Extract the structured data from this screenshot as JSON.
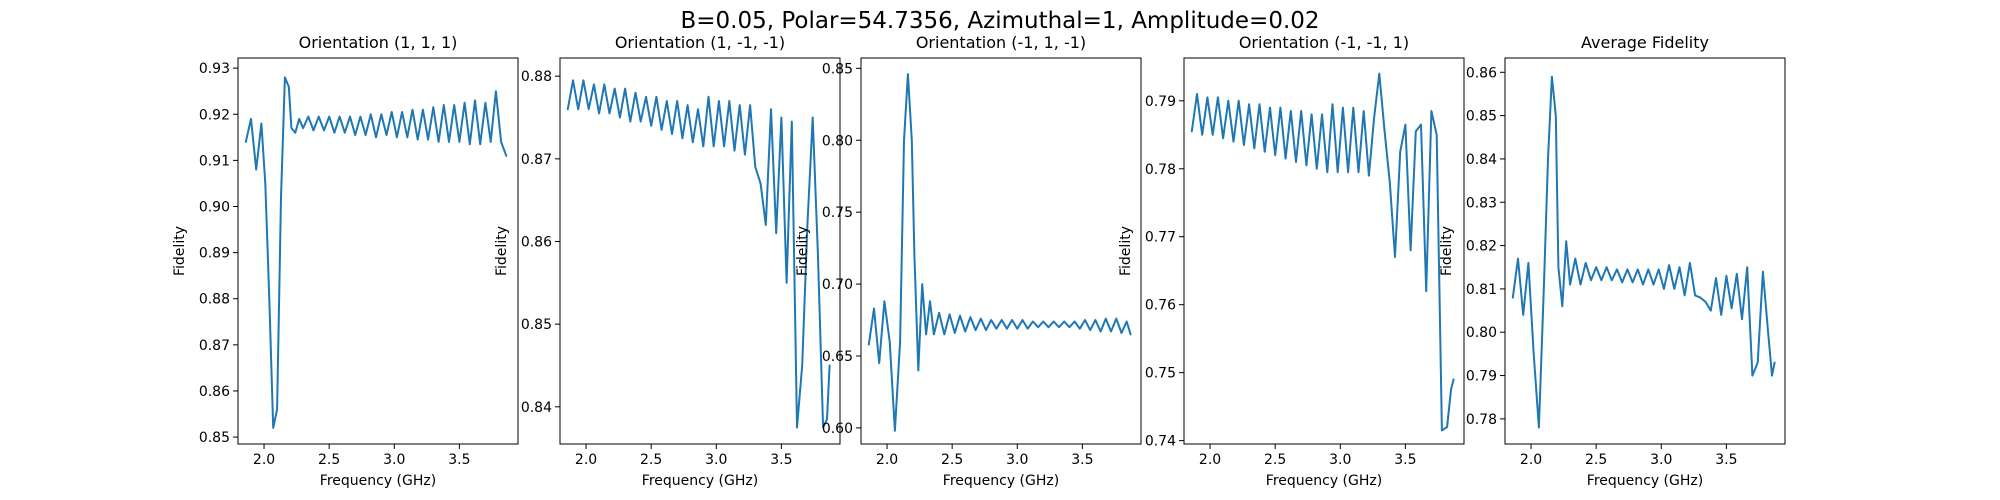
{
  "figure": {
    "suptitle": "B=0.05, Polar=54.7356, Azimuthal=1, Amplitude=0.02",
    "line_color": "#1f77b4"
  },
  "chart_data": [
    {
      "type": "line",
      "title": "Orientation (1, 1, 1)",
      "xlabel": "Frequency (GHz)",
      "ylabel": "Fidelity",
      "xlim": [
        1.8,
        3.95
      ],
      "ylim": [
        0.8485,
        0.9322
      ],
      "xticks": [
        2.0,
        2.5,
        3.0,
        3.5
      ],
      "xtick_labels": [
        "2.0",
        "2.5",
        "3.0",
        "3.5"
      ],
      "yticks": [
        0.85,
        0.86,
        0.87,
        0.88,
        0.89,
        0.9,
        0.91,
        0.92,
        0.93
      ],
      "ytick_labels": [
        "0.85",
        "0.86",
        "0.87",
        "0.88",
        "0.89",
        "0.90",
        "0.91",
        "0.92",
        "0.93"
      ],
      "series": [
        {
          "x": [
            1.86,
            1.9,
            1.94,
            1.98,
            2.01,
            2.04,
            2.07,
            2.1,
            2.13,
            2.16,
            2.19,
            2.21,
            2.24,
            2.27,
            2.3,
            2.34,
            2.38,
            2.42,
            2.46,
            2.5,
            2.54,
            2.58,
            2.62,
            2.66,
            2.7,
            2.74,
            2.78,
            2.82,
            2.86,
            2.9,
            2.94,
            2.98,
            3.02,
            3.06,
            3.1,
            3.14,
            3.18,
            3.22,
            3.26,
            3.3,
            3.34,
            3.38,
            3.42,
            3.46,
            3.5,
            3.54,
            3.58,
            3.62,
            3.66,
            3.7,
            3.74,
            3.78,
            3.82,
            3.86
          ],
          "y": [
            0.914,
            0.919,
            0.908,
            0.918,
            0.905,
            0.88,
            0.852,
            0.856,
            0.902,
            0.928,
            0.926,
            0.917,
            0.916,
            0.919,
            0.917,
            0.9195,
            0.9165,
            0.9195,
            0.9165,
            0.9195,
            0.916,
            0.9195,
            0.916,
            0.9195,
            0.9155,
            0.9195,
            0.9155,
            0.92,
            0.915,
            0.92,
            0.9155,
            0.9205,
            0.915,
            0.9205,
            0.915,
            0.921,
            0.9145,
            0.921,
            0.9145,
            0.9215,
            0.914,
            0.922,
            0.914,
            0.922,
            0.914,
            0.9225,
            0.9135,
            0.923,
            0.9135,
            0.9225,
            0.914,
            0.925,
            0.914,
            0.911
          ]
        }
      ]
    },
    {
      "type": "line",
      "title": "Orientation (1, -1, -1)",
      "xlabel": "Frequency (GHz)",
      "ylabel": "Fidelity",
      "xlim": [
        1.8,
        3.95
      ],
      "ylim": [
        0.8355,
        0.8822
      ],
      "xticks": [
        2.0,
        2.5,
        3.0,
        3.5
      ],
      "xtick_labels": [
        "2.0",
        "2.5",
        "3.0",
        "3.5"
      ],
      "yticks": [
        0.84,
        0.85,
        0.86,
        0.87,
        0.88
      ],
      "ytick_labels": [
        "0.84",
        "0.85",
        "0.86",
        "0.87",
        "0.88"
      ],
      "series": [
        {
          "x": [
            1.86,
            1.9,
            1.94,
            1.98,
            2.02,
            2.06,
            2.1,
            2.14,
            2.18,
            2.22,
            2.26,
            2.3,
            2.34,
            2.38,
            2.42,
            2.46,
            2.5,
            2.54,
            2.58,
            2.62,
            2.66,
            2.7,
            2.74,
            2.78,
            2.82,
            2.86,
            2.9,
            2.94,
            2.98,
            3.02,
            3.06,
            3.1,
            3.14,
            3.18,
            3.22,
            3.26,
            3.3,
            3.34,
            3.38,
            3.42,
            3.46,
            3.5,
            3.54,
            3.58,
            3.62,
            3.66,
            3.7,
            3.74,
            3.78,
            3.82,
            3.85,
            3.87
          ],
          "y": [
            0.876,
            0.8795,
            0.876,
            0.8795,
            0.876,
            0.879,
            0.8755,
            0.879,
            0.8755,
            0.8785,
            0.875,
            0.8785,
            0.8745,
            0.878,
            0.8745,
            0.8775,
            0.874,
            0.8775,
            0.8735,
            0.877,
            0.873,
            0.877,
            0.8725,
            0.8765,
            0.872,
            0.876,
            0.8715,
            0.8775,
            0.8715,
            0.877,
            0.8715,
            0.877,
            0.871,
            0.8765,
            0.8705,
            0.8765,
            0.869,
            0.867,
            0.862,
            0.876,
            0.861,
            0.875,
            0.855,
            0.8745,
            0.8375,
            0.845,
            0.862,
            0.875,
            0.8585,
            0.8375,
            0.8385,
            0.845
          ]
        }
      ]
    },
    {
      "type": "line",
      "title": "Orientation (-1, 1, -1)",
      "xlabel": "Frequency (GHz)",
      "ylabel": "Fidelity",
      "xlim": [
        1.8,
        3.95
      ],
      "ylim": [
        0.5888,
        0.8572
      ],
      "xticks": [
        2.0,
        2.5,
        3.0,
        3.5
      ],
      "xtick_labels": [
        "2.0",
        "2.5",
        "3.0",
        "3.5"
      ],
      "yticks": [
        0.6,
        0.65,
        0.7,
        0.75,
        0.8,
        0.85
      ],
      "ytick_labels": [
        "0.60",
        "0.65",
        "0.70",
        "0.75",
        "0.80",
        "0.85"
      ],
      "series": [
        {
          "x": [
            1.86,
            1.9,
            1.94,
            1.98,
            2.02,
            2.06,
            2.1,
            2.13,
            2.16,
            2.19,
            2.21,
            2.24,
            2.27,
            2.3,
            2.33,
            2.36,
            2.4,
            2.44,
            2.48,
            2.52,
            2.56,
            2.6,
            2.64,
            2.68,
            2.72,
            2.76,
            2.8,
            2.84,
            2.88,
            2.92,
            2.96,
            3.0,
            3.04,
            3.08,
            3.12,
            3.16,
            3.2,
            3.24,
            3.28,
            3.32,
            3.36,
            3.4,
            3.44,
            3.48,
            3.52,
            3.56,
            3.6,
            3.64,
            3.68,
            3.72,
            3.76,
            3.8,
            3.84,
            3.87
          ],
          "y": [
            0.658,
            0.683,
            0.645,
            0.688,
            0.66,
            0.598,
            0.66,
            0.8,
            0.846,
            0.8,
            0.72,
            0.64,
            0.7,
            0.665,
            0.688,
            0.665,
            0.68,
            0.665,
            0.679,
            0.666,
            0.678,
            0.667,
            0.677,
            0.668,
            0.676,
            0.668,
            0.675,
            0.669,
            0.675,
            0.669,
            0.675,
            0.669,
            0.675,
            0.669,
            0.674,
            0.67,
            0.674,
            0.67,
            0.674,
            0.67,
            0.674,
            0.67,
            0.674,
            0.669,
            0.675,
            0.668,
            0.675,
            0.667,
            0.676,
            0.667,
            0.676,
            0.666,
            0.674,
            0.665
          ]
        }
      ]
    },
    {
      "type": "line",
      "title": "Orientation (-1, -1, 1)",
      "xlabel": "Frequency (GHz)",
      "ylabel": "Fidelity",
      "xlim": [
        1.8,
        3.95
      ],
      "ylim": [
        0.7395,
        0.7963
      ],
      "xticks": [
        2.0,
        2.5,
        3.0,
        3.5
      ],
      "xtick_labels": [
        "2.0",
        "2.5",
        "3.0",
        "3.5"
      ],
      "yticks": [
        0.74,
        0.75,
        0.76,
        0.77,
        0.78,
        0.79
      ],
      "ytick_labels": [
        "0.74",
        "0.75",
        "0.76",
        "0.77",
        "0.78",
        "0.79"
      ],
      "series": [
        {
          "x": [
            1.86,
            1.9,
            1.94,
            1.98,
            2.02,
            2.06,
            2.1,
            2.14,
            2.18,
            2.22,
            2.26,
            2.3,
            2.34,
            2.38,
            2.42,
            2.46,
            2.5,
            2.54,
            2.58,
            2.62,
            2.66,
            2.7,
            2.74,
            2.78,
            2.82,
            2.86,
            2.9,
            2.94,
            2.98,
            3.02,
            3.06,
            3.1,
            3.14,
            3.18,
            3.22,
            3.26,
            3.3,
            3.34,
            3.38,
            3.42,
            3.46,
            3.5,
            3.54,
            3.58,
            3.62,
            3.66,
            3.7,
            3.74,
            3.78,
            3.82,
            3.85,
            3.87
          ],
          "y": [
            0.7855,
            0.791,
            0.785,
            0.7905,
            0.785,
            0.7905,
            0.7845,
            0.79,
            0.784,
            0.79,
            0.7835,
            0.7895,
            0.783,
            0.7895,
            0.7825,
            0.789,
            0.782,
            0.789,
            0.7815,
            0.7885,
            0.781,
            0.7885,
            0.7805,
            0.788,
            0.78,
            0.788,
            0.7795,
            0.7895,
            0.7795,
            0.789,
            0.7795,
            0.789,
            0.7795,
            0.7885,
            0.779,
            0.7875,
            0.794,
            0.7855,
            0.778,
            0.767,
            0.7825,
            0.7865,
            0.768,
            0.7855,
            0.7865,
            0.762,
            0.7885,
            0.785,
            0.7415,
            0.742,
            0.7475,
            0.749
          ]
        }
      ]
    },
    {
      "type": "line",
      "title": "Average Fidelity",
      "xlabel": "Frequency (GHz)",
      "ylabel": "Fidelity",
      "xlim": [
        1.8,
        3.95
      ],
      "ylim": [
        0.7742,
        0.8633
      ],
      "xticks": [
        2.0,
        2.5,
        3.0,
        3.5
      ],
      "xtick_labels": [
        "2.0",
        "2.5",
        "3.0",
        "3.5"
      ],
      "yticks": [
        0.78,
        0.79,
        0.8,
        0.81,
        0.82,
        0.83,
        0.84,
        0.85,
        0.86
      ],
      "ytick_labels": [
        "0.78",
        "0.79",
        "0.80",
        "0.81",
        "0.82",
        "0.83",
        "0.84",
        "0.85",
        "0.86"
      ],
      "series": [
        {
          "x": [
            1.86,
            1.9,
            1.94,
            1.98,
            2.02,
            2.06,
            2.1,
            2.13,
            2.16,
            2.19,
            2.21,
            2.24,
            2.27,
            2.3,
            2.34,
            2.38,
            2.42,
            2.46,
            2.5,
            2.54,
            2.58,
            2.62,
            2.66,
            2.7,
            2.74,
            2.78,
            2.82,
            2.86,
            2.9,
            2.94,
            2.98,
            3.02,
            3.06,
            3.1,
            3.14,
            3.18,
            3.22,
            3.26,
            3.3,
            3.34,
            3.38,
            3.42,
            3.46,
            3.5,
            3.54,
            3.58,
            3.62,
            3.66,
            3.7,
            3.74,
            3.78,
            3.82,
            3.85,
            3.87
          ],
          "y": [
            0.808,
            0.817,
            0.804,
            0.816,
            0.795,
            0.778,
            0.812,
            0.84,
            0.859,
            0.85,
            0.815,
            0.806,
            0.821,
            0.811,
            0.817,
            0.811,
            0.816,
            0.812,
            0.815,
            0.812,
            0.815,
            0.812,
            0.8145,
            0.8115,
            0.8145,
            0.8115,
            0.8145,
            0.811,
            0.8145,
            0.811,
            0.8145,
            0.81,
            0.8155,
            0.81,
            0.815,
            0.8085,
            0.816,
            0.8085,
            0.808,
            0.807,
            0.805,
            0.8125,
            0.804,
            0.813,
            0.8055,
            0.8135,
            0.803,
            0.815,
            0.79,
            0.793,
            0.814,
            0.8,
            0.79,
            0.793
          ]
        }
      ]
    }
  ]
}
